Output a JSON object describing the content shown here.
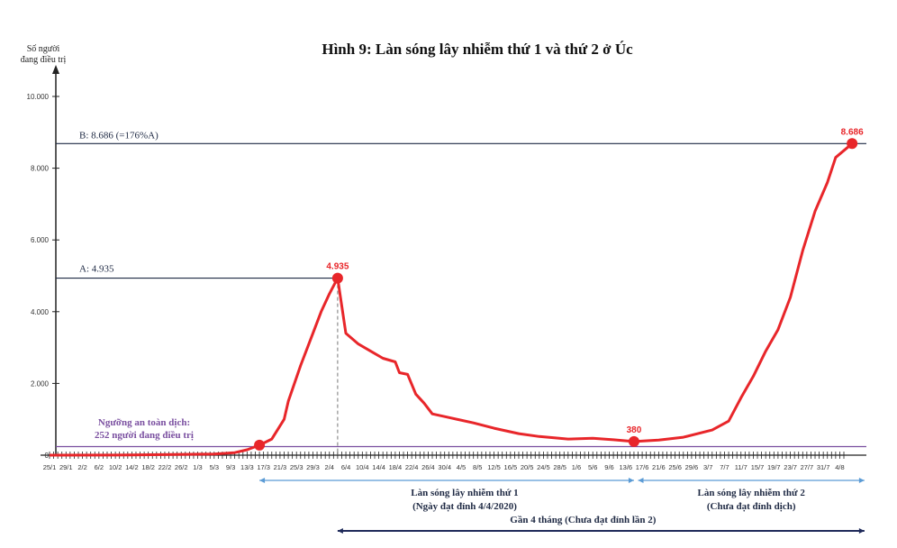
{
  "chart_data": {
    "type": "line",
    "title": "Hình 9: Làn sóng lây nhiễm thứ 1 và thứ 2 ở Úc",
    "ylabel_line1": "Số người",
    "ylabel_line2": "đang điều trị",
    "xlabel": "",
    "ylim": [
      0,
      10000
    ],
    "y_ticks": [
      "0",
      "2.000",
      "4.000",
      "6.000",
      "8.000",
      "10.000"
    ],
    "y_tick_values": [
      0,
      2000,
      4000,
      6000,
      8000,
      10000
    ],
    "x_range": [
      "2020-01-25",
      "2020-08-08"
    ],
    "x_tick_labels": [
      "25/1",
      "29/1",
      "2/2",
      "6/2",
      "10/2",
      "14/2",
      "18/2",
      "22/2",
      "26/2",
      "1/3",
      "5/3",
      "9/3",
      "13/3",
      "17/3",
      "21/3",
      "25/3",
      "29/3",
      "2/4",
      "6/4",
      "10/4",
      "14/4",
      "18/4",
      "22/4",
      "26/4",
      "30/4",
      "4/5",
      "8/5",
      "12/5",
      "16/5",
      "20/5",
      "24/5",
      "28/5",
      "1/6",
      "5/6",
      "9/6",
      "13/6",
      "17/6",
      "21/6",
      "25/6",
      "29/6",
      "3/7",
      "7/7",
      "11/7",
      "15/7",
      "19/7",
      "23/7",
      "27/7",
      "31/7",
      "4/8"
    ],
    "grid": false,
    "series_color": "#e8262a",
    "series": [
      {
        "x": [
          "2020-01-25",
          "2020-02-14",
          "2020-03-05",
          "2020-03-10",
          "2020-03-13",
          "2020-03-16",
          "2020-03-19",
          "2020-03-22",
          "2020-03-23",
          "2020-03-26",
          "2020-03-29",
          "2020-03-31",
          "2020-04-02",
          "2020-04-04",
          "2020-04-06",
          "2020-04-09",
          "2020-04-12",
          "2020-04-15",
          "2020-04-18",
          "2020-04-19",
          "2020-04-21",
          "2020-04-23",
          "2020-04-25",
          "2020-04-27",
          "2020-05-01",
          "2020-05-07",
          "2020-05-12",
          "2020-05-18",
          "2020-05-23",
          "2020-05-30",
          "2020-06-05",
          "2020-06-10",
          "2020-06-15",
          "2020-06-21",
          "2020-06-27",
          "2020-07-04",
          "2020-07-08",
          "2020-07-11",
          "2020-07-14",
          "2020-07-17",
          "2020-07-20",
          "2020-07-23",
          "2020-07-26",
          "2020-07-29",
          "2020-08-01",
          "2020-08-03",
          "2020-08-07"
        ],
        "y": [
          0,
          5,
          30,
          70,
          150,
          280,
          450,
          1000,
          1500,
          2500,
          3400,
          4000,
          4500,
          4935,
          3400,
          3100,
          2900,
          2700,
          2600,
          2300,
          2250,
          1700,
          1450,
          1150,
          1050,
          900,
          750,
          600,
          520,
          450,
          470,
          430,
          380,
          420,
          500,
          700,
          950,
          1600,
          2200,
          2900,
          3500,
          4400,
          5700,
          6800,
          7600,
          8300,
          8686
        ]
      }
    ],
    "markers": [
      {
        "x": "2020-03-16",
        "y": 280,
        "label": ""
      },
      {
        "x": "2020-04-04",
        "y": 4935,
        "label": "4.935"
      },
      {
        "x": "2020-06-15",
        "y": 380,
        "label": "380"
      },
      {
        "x": "2020-08-07",
        "y": 8686,
        "label": "8.686"
      }
    ],
    "reference_lines": {
      "peak_b": {
        "value": 8686,
        "label": "B: 8.686 (=176%A)",
        "color": "#1f2a44"
      },
      "peak_a": {
        "value": 4935,
        "label": "A: 4.935",
        "color": "#1f2a44"
      },
      "threshold": {
        "value": 252,
        "label_line1": "Ngưỡng an toàn dịch:",
        "label_line2": "252 người đang điều trị",
        "color": "#7a4fa0"
      }
    },
    "annotations": {
      "wave1": {
        "from": "2020-03-16",
        "to": "2020-06-15",
        "line1": "Làn sóng lây nhiễm thứ 1",
        "line2": "(Ngày đạt đỉnh 4/4/2020)",
        "color": "#5b9bd5"
      },
      "wave2": {
        "from": "2020-06-16",
        "to": "2020-08-10",
        "line1": "Làn sóng lây nhiễm thứ 2",
        "line2": "(Chưa đạt đỉnh dịch)",
        "color": "#5b9bd5"
      },
      "gap": {
        "from": "2020-04-04",
        "to": "2020-08-10",
        "label": "Gần 4 tháng (Chưa đạt đỉnh lần 2)",
        "color": "#1f2a5a"
      }
    }
  }
}
